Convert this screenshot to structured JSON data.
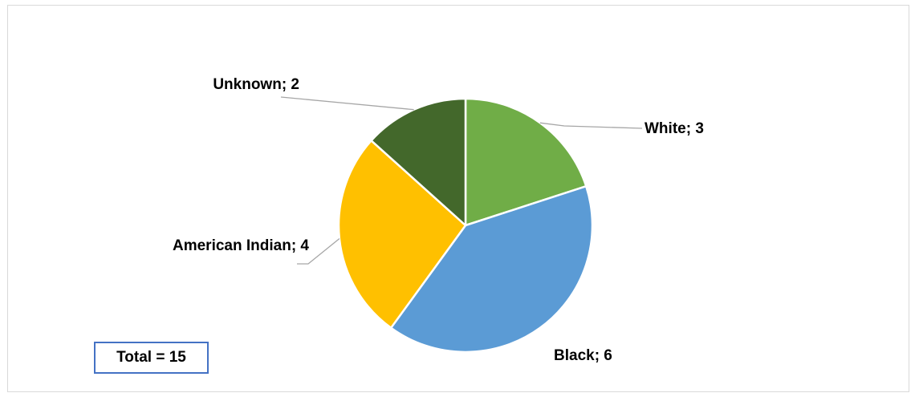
{
  "chart_data": {
    "type": "pie",
    "categories": [
      "White",
      "Black",
      "American Indian",
      "Unknown"
    ],
    "values": [
      3,
      6,
      4,
      2
    ],
    "colors": [
      "#70ad47",
      "#5b9bd5",
      "#ffc000",
      "#43682b"
    ],
    "data_labels": [
      "White; 3",
      "Black; 6",
      "American Indian; 4",
      "Unknown; 2"
    ],
    "legend": "none",
    "start_angle_deg": 0,
    "direction": "clockwise"
  },
  "annotation": {
    "total_label": "Total = 15"
  }
}
